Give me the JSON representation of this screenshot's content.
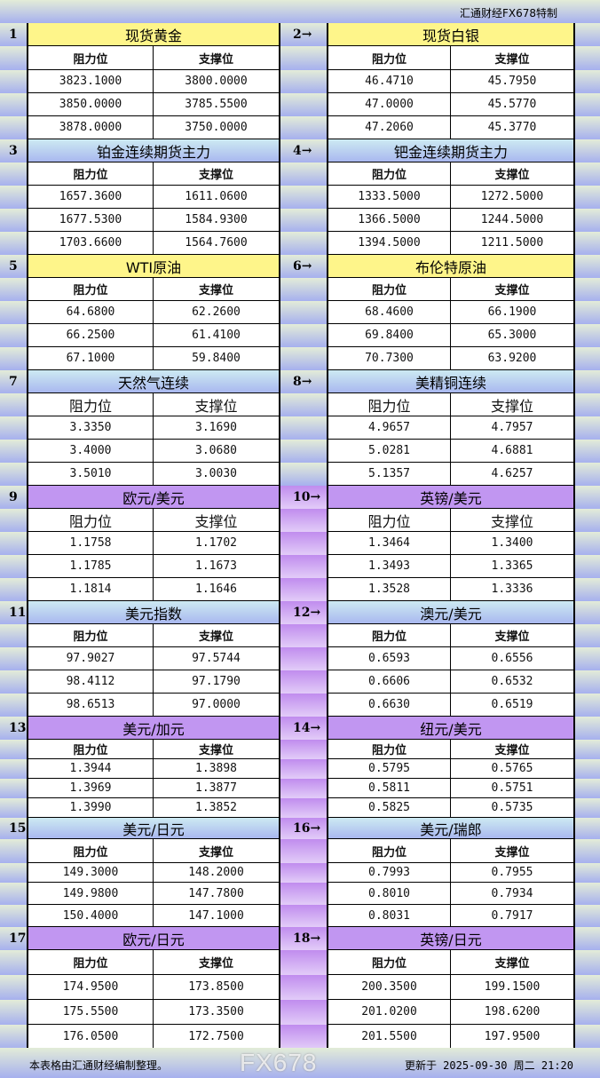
{
  "top_bar": {
    "title": "汇通财经FX678特制"
  },
  "colors": {
    "yellow": "#fef58a",
    "blue": "#a9b8ef",
    "purple": "#c196f1"
  },
  "sections": [
    {
      "left": {
        "num": "1",
        "title": "现货黄金",
        "color": "yellow",
        "headers": [
          "阻力位",
          "支撑位"
        ],
        "rows": [
          [
            "3823.1000",
            "3800.0000"
          ],
          [
            "3850.0000",
            "3785.5500"
          ],
          [
            "3878.0000",
            "3750.0000"
          ]
        ]
      },
      "right": {
        "num": "2→",
        "title": "现货白银",
        "color": "yellow",
        "headers": [
          "阻力位",
          "支撑位"
        ],
        "rows": [
          [
            "46.4710",
            "45.7950"
          ],
          [
            "47.0000",
            "45.5770"
          ],
          [
            "47.2060",
            "45.3770"
          ]
        ]
      }
    },
    {
      "left": {
        "num": "3",
        "title": "铂金连续期货主力",
        "color": "blue",
        "headers": [
          "阻力位",
          "支撑位"
        ],
        "rows": [
          [
            "1657.3600",
            "1611.0600"
          ],
          [
            "1677.5300",
            "1584.9300"
          ],
          [
            "1703.6600",
            "1564.7600"
          ]
        ]
      },
      "right": {
        "num": "4→",
        "title": "钯金连续期货主力",
        "color": "blue",
        "headers": [
          "阻力位",
          "支撑位"
        ],
        "rows": [
          [
            "1333.5000",
            "1272.5000"
          ],
          [
            "1366.5000",
            "1244.5000"
          ],
          [
            "1394.5000",
            "1211.5000"
          ]
        ]
      }
    },
    {
      "left": {
        "num": "5",
        "title": "WTI原油",
        "color": "yellow",
        "headers": [
          "阻力位",
          "支撑位"
        ],
        "rows": [
          [
            "64.6800",
            "62.2600"
          ],
          [
            "66.2500",
            "61.4100"
          ],
          [
            "67.1000",
            "59.8400"
          ]
        ]
      },
      "right": {
        "num": "6→",
        "title": "布伦特原油",
        "color": "yellow",
        "headers": [
          "阻力位",
          "支撑位"
        ],
        "rows": [
          [
            "68.4600",
            "66.1900"
          ],
          [
            "69.8400",
            "65.3000"
          ],
          [
            "70.7300",
            "63.9200"
          ]
        ]
      }
    },
    {
      "left": {
        "num": "7",
        "title": "天然气连续",
        "color": "blue",
        "headers": [
          "阻力位",
          "支撑位"
        ],
        "rows": [
          [
            "3.3350",
            "3.1690"
          ],
          [
            "3.4000",
            "3.0680"
          ],
          [
            "3.5010",
            "3.0030"
          ]
        ]
      },
      "right": {
        "num": "8→",
        "title": "美精铜连续",
        "color": "blue",
        "headers": [
          "阻力位",
          "支撑位"
        ],
        "rows": [
          [
            "4.9657",
            "4.7957"
          ],
          [
            "5.0281",
            "4.6881"
          ],
          [
            "5.1357",
            "4.6257"
          ]
        ]
      }
    },
    {
      "left": {
        "num": "9",
        "title": "欧元/美元",
        "color": "purple",
        "headers": [
          "阻力位",
          "支撑位"
        ],
        "rows": [
          [
            "1.1758",
            "1.1702"
          ],
          [
            "1.1785",
            "1.1673"
          ],
          [
            "1.1814",
            "1.1646"
          ]
        ]
      },
      "right": {
        "num": "10→",
        "title": "英镑/美元",
        "color": "purple",
        "headers": [
          "阻力位",
          "支撑位"
        ],
        "rows": [
          [
            "1.3464",
            "1.3400"
          ],
          [
            "1.3493",
            "1.3365"
          ],
          [
            "1.3528",
            "1.3336"
          ]
        ]
      }
    },
    {
      "left": {
        "num": "11",
        "title": "美元指数",
        "color": "blue",
        "headers": [
          "阻力位",
          "支撑位"
        ],
        "rows": [
          [
            "97.9027",
            "97.5744"
          ],
          [
            "98.4112",
            "97.1790"
          ],
          [
            "98.6513",
            "97.0000"
          ]
        ]
      },
      "right": {
        "num": "12→",
        "title": "澳元/美元",
        "color": "blue",
        "headers": [
          "阻力位",
          "支撑位"
        ],
        "rows": [
          [
            "0.6593",
            "0.6556"
          ],
          [
            "0.6606",
            "0.6532"
          ],
          [
            "0.6630",
            "0.6519"
          ]
        ]
      }
    },
    {
      "left": {
        "num": "13",
        "title": "美元/加元",
        "color": "purple",
        "headers": [
          "阻力位",
          "支撑位"
        ],
        "rows": [
          [
            "1.3944",
            "1.3898"
          ],
          [
            "1.3969",
            "1.3877"
          ],
          [
            "1.3990",
            "1.3852"
          ]
        ]
      },
      "right": {
        "num": "14→",
        "title": "纽元/美元",
        "color": "purple",
        "headers": [
          "阻力位",
          "支撑位"
        ],
        "rows": [
          [
            "0.5795",
            "0.5765"
          ],
          [
            "0.5811",
            "0.5751"
          ],
          [
            "0.5825",
            "0.5735"
          ]
        ]
      }
    },
    {
      "left": {
        "num": "15",
        "title": "美元/日元",
        "color": "blue",
        "headers": [
          "阻力位",
          "支撑位"
        ],
        "rows": [
          [
            "149.3000",
            "148.2000"
          ],
          [
            "149.9800",
            "147.7800"
          ],
          [
            "150.4000",
            "147.1000"
          ]
        ]
      },
      "right": {
        "num": "16→",
        "title": "美元/瑞郎",
        "color": "blue",
        "headers": [
          "阻力位",
          "支撑位"
        ],
        "rows": [
          [
            "0.7993",
            "0.7955"
          ],
          [
            "0.8010",
            "0.7934"
          ],
          [
            "0.8031",
            "0.7917"
          ]
        ]
      }
    },
    {
      "left": {
        "num": "17",
        "title": "欧元/日元",
        "color": "purple",
        "headers": [
          "阻力位",
          "支撑位"
        ],
        "rows": [
          [
            "174.9500",
            "173.8500"
          ],
          [
            "175.5500",
            "173.3500"
          ],
          [
            "176.0500",
            "172.7500"
          ]
        ]
      },
      "right": {
        "num": "18→",
        "title": "英镑/日元",
        "color": "purple",
        "headers": [
          "阻力位",
          "支撑位"
        ],
        "rows": [
          [
            "200.3500",
            "199.1500"
          ],
          [
            "201.0200",
            "198.6200"
          ],
          [
            "201.5500",
            "197.9500"
          ]
        ]
      }
    }
  ],
  "footer": {
    "note": "本表格由汇通财经编制整理。",
    "updated": "更新于 2025-09-30 周二 21:20"
  },
  "watermark": "FX678"
}
